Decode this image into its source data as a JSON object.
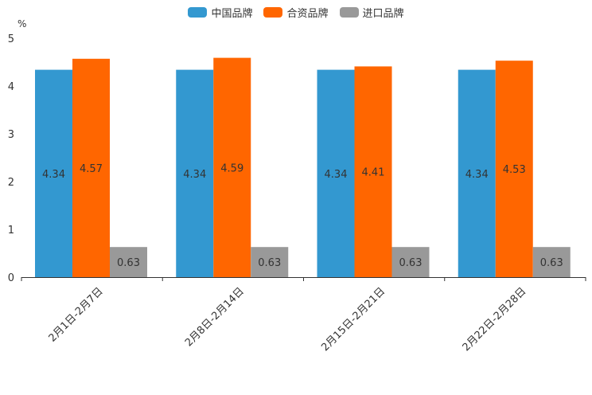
{
  "chart_data": {
    "type": "bar",
    "ylabel": "%",
    "ylim": [
      0,
      5
    ],
    "yticks": [
      "0",
      "1",
      "2",
      "3",
      "4",
      "5"
    ],
    "categories": [
      "2月1日-2月7日",
      "2月8日-2月14日",
      "2月15日-2月21日",
      "2月22日-2月28日"
    ],
    "series": [
      {
        "name": "中国品牌",
        "color": "#3398d0",
        "values": [
          4.34,
          4.34,
          4.34,
          4.34
        ],
        "labels": [
          "4.34",
          "4.34",
          "4.34",
          "4.34"
        ]
      },
      {
        "name": "合资品牌",
        "color": "#ff6600",
        "values": [
          4.57,
          4.59,
          4.41,
          4.53
        ],
        "labels": [
          "4.57",
          "4.59",
          "4.41",
          "4.53"
        ]
      },
      {
        "name": "进口品牌",
        "color": "#999999",
        "values": [
          0.63,
          0.63,
          0.63,
          0.63
        ],
        "labels": [
          "0.63",
          "0.63",
          "0.63",
          "0.63"
        ]
      }
    ],
    "legend_position": "top-center",
    "grid": false
  }
}
